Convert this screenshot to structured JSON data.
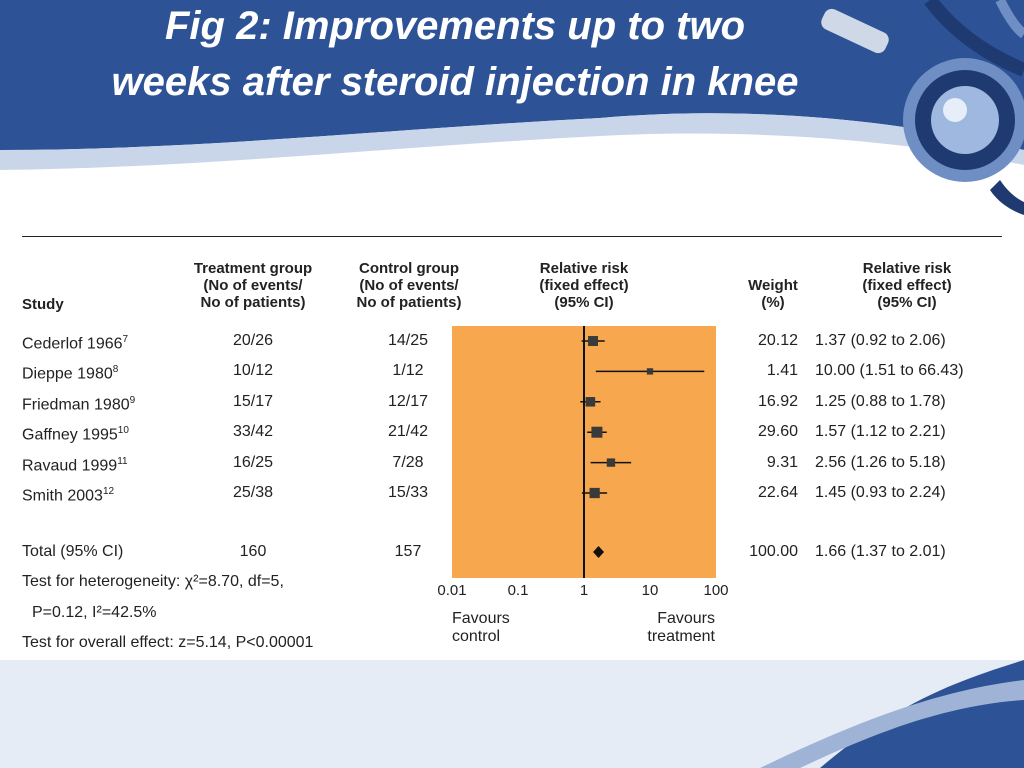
{
  "slide": {
    "title_line1": "Fig 2: Improvements up to two",
    "title_line2": "weeks after steroid injection in knee",
    "colors": {
      "header_blue": "#2e5296",
      "plot_bg": "#f7a74d",
      "ink": "#222222"
    },
    "decor_icon": "stethoscope-icon"
  },
  "chart_data": {
    "type": "forest",
    "columns": {
      "study": "Study",
      "treatment": "Treatment group\n(No of events/\nNo of patients)",
      "control": "Control group\n(No of events/\nNo of patients)",
      "rr": "Relative risk\n(fixed effect)\n(95% CI)",
      "weight": "Weight\n(%)",
      "rr_text": "Relative risk\n(fixed effect)\n(95% CI)"
    },
    "studies": [
      {
        "name": "Cederlof 1966",
        "ref": "7",
        "treatment": "20/26",
        "control": "14/25",
        "rr": 1.37,
        "lo": 0.92,
        "hi": 2.06,
        "weight": "20.12",
        "weight_pct": 20.12,
        "ci": "1.37 (0.92 to 2.06)"
      },
      {
        "name": "Dieppe 1980",
        "ref": "8",
        "treatment": "10/12",
        "control": "1/12",
        "rr": 10.0,
        "lo": 1.51,
        "hi": 66.43,
        "weight": "1.41",
        "weight_pct": 1.41,
        "ci": "10.00 (1.51 to 66.43)"
      },
      {
        "name": "Friedman 1980",
        "ref": "9",
        "treatment": "15/17",
        "control": "12/17",
        "rr": 1.25,
        "lo": 0.88,
        "hi": 1.78,
        "weight": "16.92",
        "weight_pct": 16.92,
        "ci": "1.25 (0.88 to 1.78)"
      },
      {
        "name": "Gaffney 1995",
        "ref": "10",
        "treatment": "33/42",
        "control": "21/42",
        "rr": 1.57,
        "lo": 1.12,
        "hi": 2.21,
        "weight": "29.60",
        "weight_pct": 29.6,
        "ci": "1.57 (1.12 to 2.21)"
      },
      {
        "name": "Ravaud 1999",
        "ref": "11",
        "treatment": "16/25",
        "control": "7/28",
        "rr": 2.56,
        "lo": 1.26,
        "hi": 5.18,
        "weight": "9.31",
        "weight_pct": 9.31,
        "ci": "2.56 (1.26 to 5.18)"
      },
      {
        "name": "Smith 2003",
        "ref": "12",
        "treatment": "25/38",
        "control": "15/33",
        "rr": 1.45,
        "lo": 0.93,
        "hi": 2.24,
        "weight": "22.64",
        "weight_pct": 22.64,
        "ci": "1.45 (0.93 to 2.24)"
      }
    ],
    "total": {
      "name": "Total (95% CI)",
      "treatment": "160",
      "control": "157",
      "rr": 1.66,
      "lo": 1.37,
      "hi": 2.01,
      "weight": "100.00",
      "ci": "1.66 (1.37 to 2.01)"
    },
    "heterogeneity_line1": "Test for heterogeneity: χ²=8.70, df=5,",
    "heterogeneity_line2": "P=0.12, I²=42.5%",
    "overall_effect": "Test for overall effect: z=5.14, P<0.00001",
    "x_scale": "log",
    "x_ticks": [
      0.01,
      0.1,
      1,
      10,
      100
    ],
    "x_tick_labels": [
      "0.01",
      "0.1",
      "1",
      "10",
      "100"
    ],
    "xlim": [
      0.01,
      100
    ],
    "favours_left": "Favours\ncontrol",
    "favours_right": "Favours\ntreatment"
  }
}
